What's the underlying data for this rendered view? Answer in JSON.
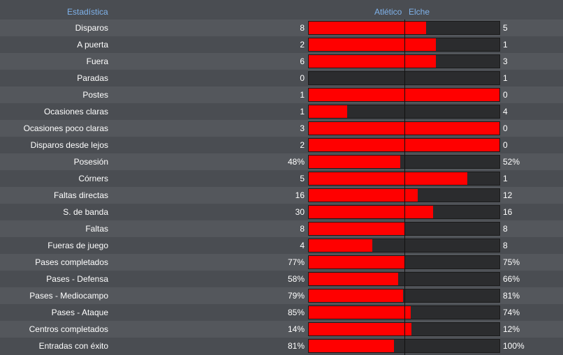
{
  "header": {
    "stat_label": "Estadística",
    "team1": "Atlético",
    "team2": "Elche"
  },
  "colors": {
    "team1_bar": "#ff0000",
    "track": "#2b2c2e",
    "header_text": "#7fb2ea"
  },
  "stats": [
    {
      "label": "Disparos",
      "v1": "8",
      "v2": "5",
      "share1": 0.615
    },
    {
      "label": "A puerta",
      "v1": "2",
      "v2": "1",
      "share1": 0.667
    },
    {
      "label": "Fuera",
      "v1": "6",
      "v2": "3",
      "share1": 0.667
    },
    {
      "label": "Paradas",
      "v1": "0",
      "v2": "1",
      "share1": 0.0
    },
    {
      "label": "Postes",
      "v1": "1",
      "v2": "0",
      "share1": 1.0
    },
    {
      "label": "Ocasiones claras",
      "v1": "1",
      "v2": "4",
      "share1": 0.2
    },
    {
      "label": "Ocasiones poco claras",
      "v1": "3",
      "v2": "0",
      "share1": 1.0
    },
    {
      "label": "Disparos desde lejos",
      "v1": "2",
      "v2": "0",
      "share1": 1.0
    },
    {
      "label": "Posesión",
      "v1": "48%",
      "v2": "52%",
      "share1": 0.48
    },
    {
      "label": "Córners",
      "v1": "5",
      "v2": "1",
      "share1": 0.833
    },
    {
      "label": "Faltas directas",
      "v1": "16",
      "v2": "12",
      "share1": 0.571
    },
    {
      "label": "S. de banda",
      "v1": "30",
      "v2": "16",
      "share1": 0.652
    },
    {
      "label": "Faltas",
      "v1": "8",
      "v2": "8",
      "share1": 0.5
    },
    {
      "label": "Fueras de juego",
      "v1": "4",
      "v2": "8",
      "share1": 0.333
    },
    {
      "label": "Pases completados",
      "v1": "77%",
      "v2": "75%",
      "share1": 0.507
    },
    {
      "label": "Pases - Defensa",
      "v1": "58%",
      "v2": "66%",
      "share1": 0.468
    },
    {
      "label": "Pases - Mediocampo",
      "v1": "79%",
      "v2": "81%",
      "share1": 0.494
    },
    {
      "label": "Pases - Ataque",
      "v1": "85%",
      "v2": "74%",
      "share1": 0.535
    },
    {
      "label": "Centros completados",
      "v1": "14%",
      "v2": "12%",
      "share1": 0.538
    },
    {
      "label": "Entradas con éxito",
      "v1": "81%",
      "v2": "100%",
      "share1": 0.447
    }
  ]
}
